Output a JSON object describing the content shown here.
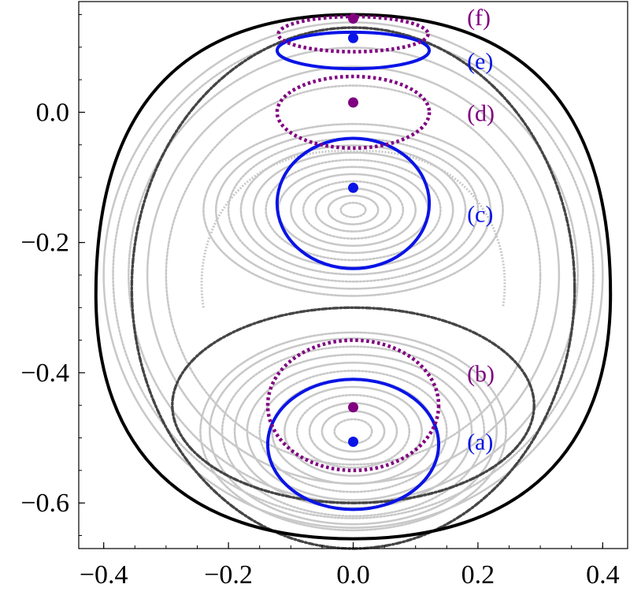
{
  "chart_data": {
    "type": "scatter",
    "title": "",
    "xlabel": "",
    "ylabel": "",
    "xlim": [
      -0.44,
      0.44
    ],
    "ylim": [
      -0.67,
      0.17
    ],
    "x_ticks": [
      {
        "value": -0.4,
        "label": "−0.4"
      },
      {
        "value": -0.2,
        "label": "−0.2"
      },
      {
        "value": 0.0,
        "label": "0.0"
      },
      {
        "value": 0.2,
        "label": "0.2"
      },
      {
        "value": 0.4,
        "label": "0.4"
      }
    ],
    "y_ticks": [
      {
        "value": 0.0,
        "label": "0.0"
      },
      {
        "value": -0.2,
        "label": "−0.2"
      },
      {
        "value": -0.4,
        "label": "−0.4"
      },
      {
        "value": -0.6,
        "label": "−0.6"
      }
    ],
    "grid": false,
    "colors": {
      "boundary": "#000000",
      "background_orbits": "#c8c8c8",
      "highlight_orbit": "#454545",
      "blue": "#0a14e6",
      "purple": "#800080"
    },
    "boundary": {
      "center": [
        0.0,
        -0.255
      ],
      "rx": 0.4125,
      "ry_top": 0.405,
      "ry_bottom": 0.405,
      "top_y": 0.15,
      "bottom_y": -0.655
    },
    "background_families": [
      {
        "name": "lower-island",
        "center": [
          0.0,
          -0.49
        ],
        "rx": [
          0.03,
          0.05,
          0.07,
          0.09,
          0.11,
          0.13,
          0.15,
          0.17,
          0.19,
          0.21,
          0.23,
          0.245
        ],
        "ry_scale": 0.62
      },
      {
        "name": "middle-island",
        "center": [
          0.0,
          -0.15
        ],
        "rx": [
          0.02,
          0.04,
          0.06,
          0.08,
          0.1,
          0.12,
          0.14,
          0.16,
          0.18,
          0.2,
          0.22,
          0.24
        ],
        "ry_scale": 0.55
      },
      {
        "name": "outer-rotational",
        "center": [
          0.0,
          -0.25
        ],
        "rx": [
          0.3,
          0.33,
          0.36,
          0.385,
          0.4
        ],
        "ry_scale": 0.97
      }
    ],
    "highlight_orbits": [
      {
        "name": "separatrix-lower",
        "center": [
          0.0,
          -0.45
        ],
        "rx": 0.29,
        "ry": 0.15
      },
      {
        "name": "outer-ring",
        "center": [
          0.0,
          -0.27
        ],
        "rx": 0.355,
        "ry": 0.4
      }
    ],
    "series": [
      {
        "label": "(a)",
        "color": "#0a14e6",
        "style": "solid",
        "center": [
          0.0,
          -0.51
        ],
        "rx": 0.137,
        "ry": 0.1,
        "point": [
          0.0,
          -0.506
        ],
        "label_pos": [
          0.18,
          -0.505
        ]
      },
      {
        "label": "(b)",
        "color": "#800080",
        "style": "dotted",
        "center": [
          0.0,
          -0.45
        ],
        "rx": 0.137,
        "ry": 0.1,
        "point": [
          0.0,
          -0.453
        ],
        "label_pos": [
          0.18,
          -0.4
        ]
      },
      {
        "label": "(c)",
        "color": "#0a14e6",
        "style": "solid",
        "center": [
          0.0,
          -0.14
        ],
        "rx": 0.122,
        "ry": 0.1,
        "point": [
          0.0,
          -0.116
        ],
        "label_pos": [
          0.18,
          -0.155
        ]
      },
      {
        "label": "(d)",
        "color": "#800080",
        "style": "dotted",
        "center": [
          0.0,
          0.0
        ],
        "rx": 0.122,
        "ry": 0.055,
        "point": [
          0.0,
          0.015
        ],
        "label_pos": [
          0.18,
          0.0
        ]
      },
      {
        "label": "(e)",
        "color": "#0a14e6",
        "style": "solid",
        "center": [
          0.0,
          0.095
        ],
        "rx": 0.122,
        "ry": 0.028,
        "point": [
          0.0,
          0.114
        ],
        "label_pos": [
          0.18,
          0.08
        ]
      },
      {
        "label": "(f)",
        "color": "#800080",
        "style": "dotted",
        "center": [
          0.0,
          0.12
        ],
        "rx": 0.12,
        "ry": 0.027,
        "point": [
          0.0,
          0.144
        ],
        "label_pos": [
          0.18,
          0.147
        ]
      }
    ]
  }
}
